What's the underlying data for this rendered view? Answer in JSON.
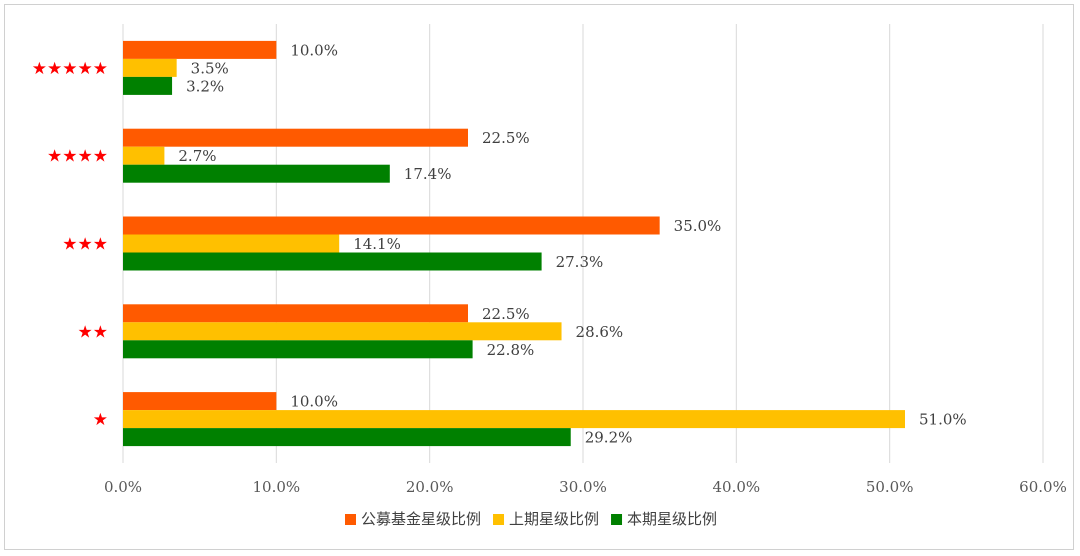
{
  "chart_data": {
    "type": "bar",
    "orientation": "horizontal",
    "categories": [
      "★★★★★",
      "★★★★",
      "★★★",
      "★★",
      "★"
    ],
    "series": [
      {
        "name": "公募基金星级比例",
        "color": "#ff5a00",
        "values": [
          10.0,
          22.5,
          35.0,
          22.5,
          10.0
        ]
      },
      {
        "name": "上期星级比例",
        "color": "#ffc000",
        "values": [
          3.5,
          2.7,
          14.1,
          28.6,
          51.0
        ]
      },
      {
        "name": "本期星级比例",
        "color": "#008000",
        "values": [
          3.2,
          17.4,
          27.3,
          22.8,
          29.2
        ]
      }
    ],
    "xlim": [
      0,
      60
    ],
    "xticks": [
      "0.0%",
      "10.0%",
      "20.0%",
      "30.0%",
      "40.0%",
      "50.0%",
      "60.0%"
    ],
    "category_label_color": "#ff0000",
    "grid": true,
    "legend_position": "bottom"
  }
}
